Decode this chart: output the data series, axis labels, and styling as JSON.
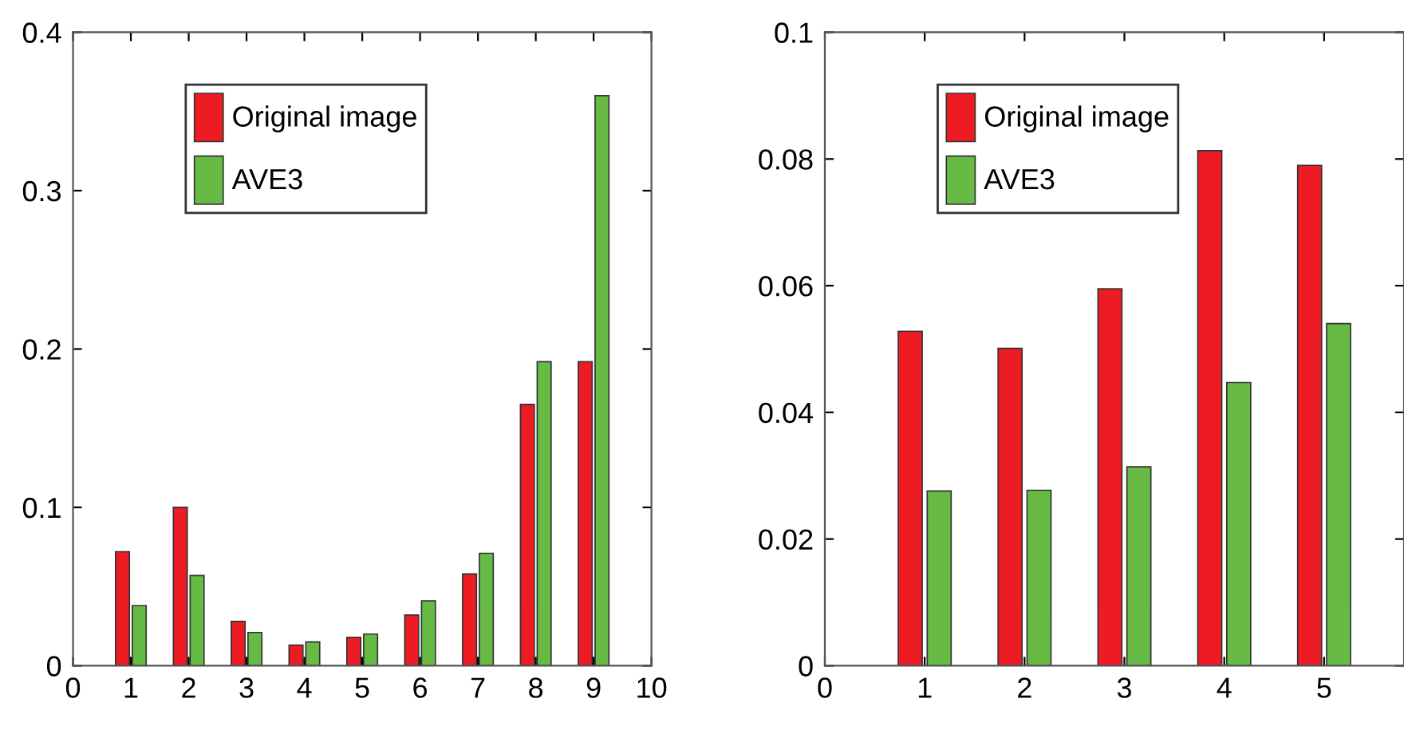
{
  "chart_data": [
    {
      "type": "bar",
      "x": [
        1,
        2,
        3,
        4,
        5,
        6,
        7,
        8,
        9
      ],
      "xlim": [
        0,
        10
      ],
      "xticks": [
        0,
        1,
        2,
        3,
        4,
        5,
        6,
        7,
        8,
        9,
        10
      ],
      "ylim": [
        0,
        0.4
      ],
      "yticks": [
        0,
        0.1,
        0.2,
        0.3,
        0.4
      ],
      "grid": false,
      "legend": "top",
      "series": [
        {
          "name": "Original image",
          "color": "#ed1c24",
          "values": [
            0.072,
            0.1,
            0.028,
            0.013,
            0.018,
            0.032,
            0.058,
            0.165,
            0.192
          ]
        },
        {
          "name": "AVE3",
          "color": "#67bb45",
          "values": [
            0.038,
            0.057,
            0.021,
            0.015,
            0.02,
            0.041,
            0.071,
            0.192,
            0.36
          ]
        }
      ]
    },
    {
      "type": "bar",
      "x": [
        1,
        2,
        3,
        4,
        5
      ],
      "xlim": [
        0,
        5.8
      ],
      "xticks": [
        0,
        1,
        2,
        3,
        4,
        5
      ],
      "ylim": [
        0,
        0.1
      ],
      "yticks": [
        0,
        0.02,
        0.04,
        0.06,
        0.08,
        0.1
      ],
      "grid": false,
      "legend": "top",
      "series": [
        {
          "name": "Original image",
          "color": "#ed1c24",
          "values": [
            0.0528,
            0.0501,
            0.0595,
            0.0813,
            0.079
          ]
        },
        {
          "name": "AVE3",
          "color": "#67bb45",
          "values": [
            0.0276,
            0.0277,
            0.0314,
            0.0447,
            0.054
          ]
        }
      ]
    }
  ]
}
